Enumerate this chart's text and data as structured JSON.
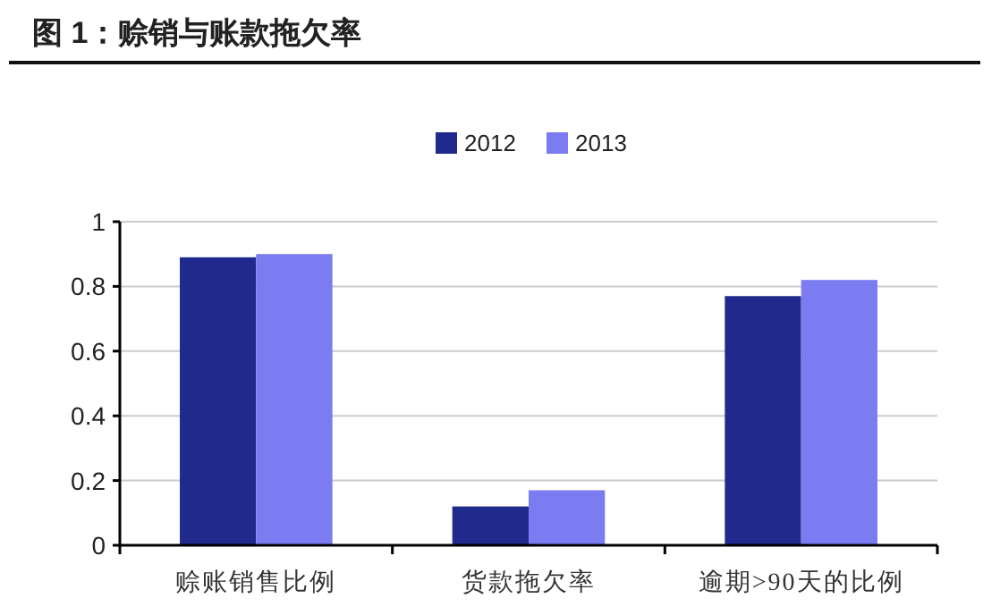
{
  "chart_data": {
    "type": "bar",
    "title": "图 1：赊销与账款拖欠率",
    "categories": [
      "赊账销售比例",
      "货款拖欠率",
      "逾期>90天的比例"
    ],
    "series": [
      {
        "name": "2012",
        "color": "#1f2a8c",
        "values": [
          0.89,
          0.12,
          0.77
        ]
      },
      {
        "name": "2013",
        "color": "#7b7cf2",
        "values": [
          0.9,
          0.17,
          0.82
        ]
      }
    ],
    "ylim": [
      0,
      1
    ],
    "yticks": [
      0,
      0.2,
      0.4,
      0.6,
      0.8,
      1
    ],
    "grid": "y",
    "legend": "top"
  }
}
